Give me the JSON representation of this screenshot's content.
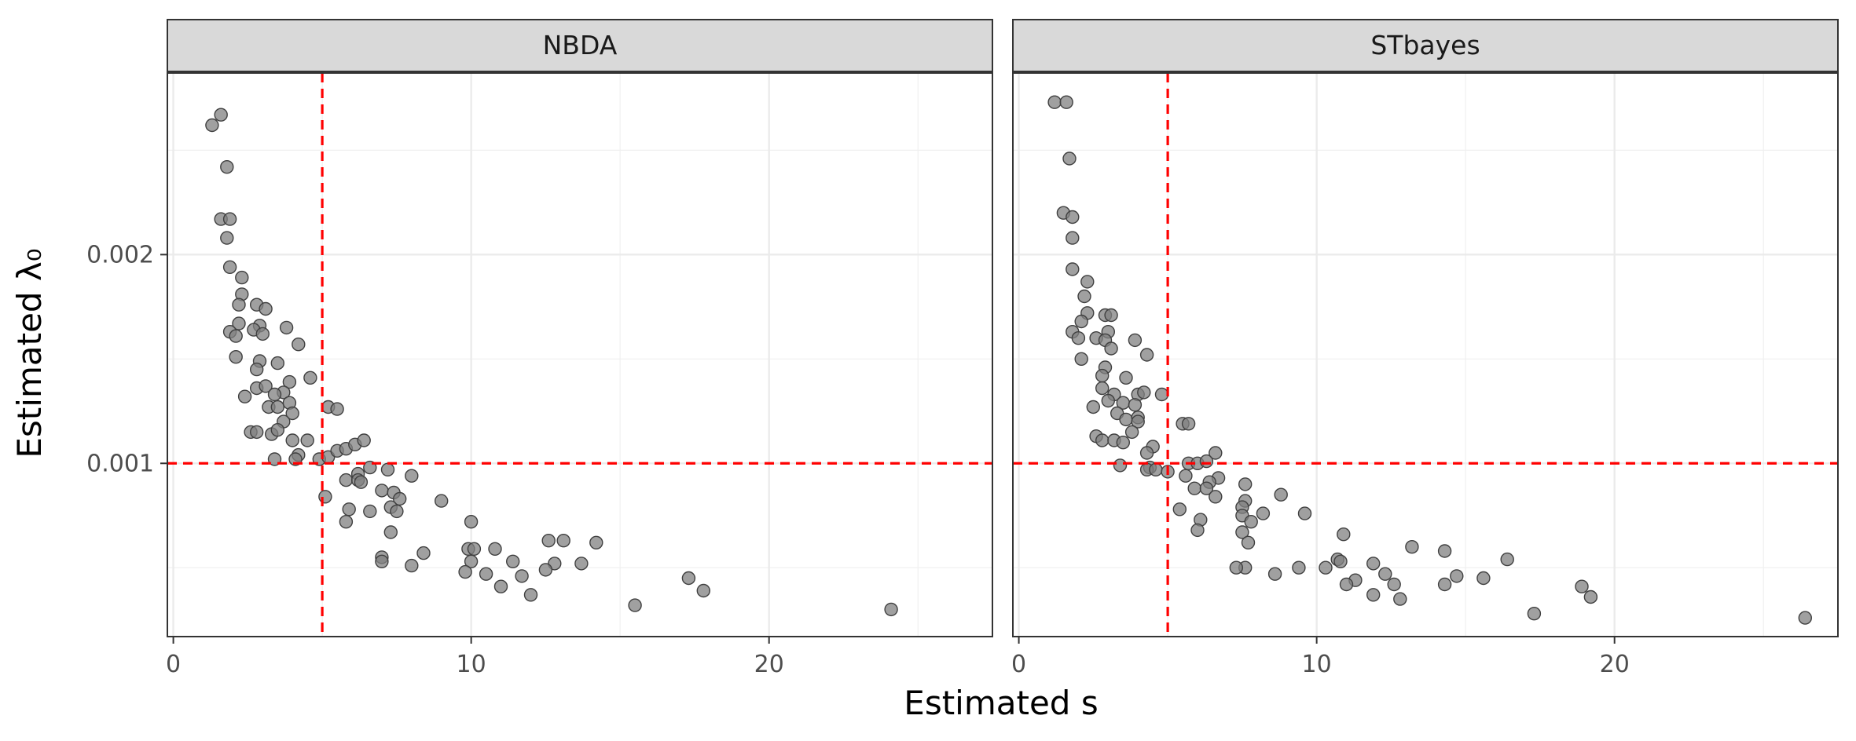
{
  "chart_data": {
    "type": "scatter",
    "xlabel": "Estimated s",
    "ylabel": "Estimated λ₀",
    "xlim": [
      -0.2,
      27.5
    ],
    "ylim": [
      0.00017,
      0.00287
    ],
    "x_ticks": [
      0,
      10,
      20
    ],
    "x_tick_labels": [
      "0",
      "10",
      "20"
    ],
    "y_ticks": [
      0.001,
      0.002
    ],
    "y_tick_labels": [
      "0.001",
      "0.002"
    ],
    "reference_lines": {
      "x": 5,
      "y": 0.001,
      "color": "#ff0000",
      "style": "dashed"
    },
    "grid": true,
    "point_color": "#808080",
    "panels": [
      {
        "name": "NBDA",
        "points": [
          [
            1.3,
            0.00262
          ],
          [
            1.6,
            0.00267
          ],
          [
            1.8,
            0.00242
          ],
          [
            1.6,
            0.00217
          ],
          [
            1.9,
            0.00217
          ],
          [
            1.8,
            0.00208
          ],
          [
            1.9,
            0.00194
          ],
          [
            2.3,
            0.00189
          ],
          [
            2.3,
            0.00181
          ],
          [
            2.2,
            0.00176
          ],
          [
            2.8,
            0.00176
          ],
          [
            3.1,
            0.00174
          ],
          [
            2.2,
            0.00167
          ],
          [
            2.9,
            0.00166
          ],
          [
            2.7,
            0.00164
          ],
          [
            3.0,
            0.00162
          ],
          [
            1.9,
            0.00163
          ],
          [
            2.1,
            0.00161
          ],
          [
            3.8,
            0.00165
          ],
          [
            4.2,
            0.00157
          ],
          [
            2.1,
            0.00151
          ],
          [
            2.9,
            0.00149
          ],
          [
            3.5,
            0.00148
          ],
          [
            2.8,
            0.00145
          ],
          [
            3.9,
            0.00139
          ],
          [
            4.6,
            0.00141
          ],
          [
            2.8,
            0.00136
          ],
          [
            3.1,
            0.00137
          ],
          [
            3.7,
            0.00134
          ],
          [
            2.4,
            0.00132
          ],
          [
            3.4,
            0.00133
          ],
          [
            3.9,
            0.00129
          ],
          [
            3.2,
            0.00127
          ],
          [
            3.5,
            0.00127
          ],
          [
            4.0,
            0.00124
          ],
          [
            3.7,
            0.0012
          ],
          [
            2.6,
            0.00115
          ],
          [
            2.8,
            0.00115
          ],
          [
            3.3,
            0.00114
          ],
          [
            3.5,
            0.00116
          ],
          [
            4.0,
            0.00111
          ],
          [
            4.5,
            0.00111
          ],
          [
            4.2,
            0.00104
          ],
          [
            4.1,
            0.00102
          ],
          [
            3.4,
            0.00102
          ],
          [
            4.9,
            0.00102
          ],
          [
            5.2,
            0.00103
          ],
          [
            5.2,
            0.00127
          ],
          [
            5.5,
            0.00126
          ],
          [
            5.5,
            0.00106
          ],
          [
            5.8,
            0.00107
          ],
          [
            6.1,
            0.00109
          ],
          [
            6.4,
            0.00111
          ],
          [
            6.6,
            0.00098
          ],
          [
            7.2,
            0.00097
          ],
          [
            6.2,
            0.00095
          ],
          [
            5.8,
            0.00092
          ],
          [
            6.2,
            0.00092
          ],
          [
            6.3,
            0.00091
          ],
          [
            5.1,
            0.00084
          ],
          [
            7.0,
            0.00087
          ],
          [
            7.4,
            0.00086
          ],
          [
            7.6,
            0.00083
          ],
          [
            8.0,
            0.00094
          ],
          [
            7.3,
            0.00079
          ],
          [
            7.5,
            0.00077
          ],
          [
            6.6,
            0.00077
          ],
          [
            5.9,
            0.00078
          ],
          [
            5.8,
            0.00072
          ],
          [
            9.0,
            0.00082
          ],
          [
            7.3,
            0.00067
          ],
          [
            7.0,
            0.00055
          ],
          [
            7.0,
            0.00053
          ],
          [
            8.0,
            0.00051
          ],
          [
            8.4,
            0.00057
          ],
          [
            10.0,
            0.00072
          ],
          [
            9.9,
            0.00059
          ],
          [
            10.1,
            0.00059
          ],
          [
            10.0,
            0.00053
          ],
          [
            9.8,
            0.00048
          ],
          [
            10.5,
            0.00047
          ],
          [
            10.8,
            0.00059
          ],
          [
            11.4,
            0.00053
          ],
          [
            12.6,
            0.00063
          ],
          [
            13.1,
            0.00063
          ],
          [
            12.8,
            0.00052
          ],
          [
            13.7,
            0.00052
          ],
          [
            14.2,
            0.00062
          ],
          [
            12.5,
            0.00049
          ],
          [
            11.0,
            0.00041
          ],
          [
            11.7,
            0.00046
          ],
          [
            12.0,
            0.00037
          ],
          [
            15.5,
            0.00032
          ],
          [
            17.3,
            0.00045
          ],
          [
            17.8,
            0.00039
          ],
          [
            24.1,
            0.0003
          ]
        ]
      },
      {
        "name": "STbayes",
        "points": [
          [
            1.2,
            0.00273
          ],
          [
            1.6,
            0.00273
          ],
          [
            1.7,
            0.00246
          ],
          [
            1.5,
            0.0022
          ],
          [
            1.8,
            0.00218
          ],
          [
            1.8,
            0.00208
          ],
          [
            1.8,
            0.00193
          ],
          [
            2.3,
            0.00187
          ],
          [
            2.2,
            0.0018
          ],
          [
            2.3,
            0.00172
          ],
          [
            2.1,
            0.00168
          ],
          [
            1.8,
            0.00163
          ],
          [
            2.0,
            0.0016
          ],
          [
            2.6,
            0.0016
          ],
          [
            2.9,
            0.00171
          ],
          [
            3.1,
            0.00171
          ],
          [
            3.0,
            0.00163
          ],
          [
            2.9,
            0.00159
          ],
          [
            3.1,
            0.00155
          ],
          [
            3.9,
            0.00159
          ],
          [
            4.3,
            0.00152
          ],
          [
            2.1,
            0.0015
          ],
          [
            2.9,
            0.00146
          ],
          [
            3.6,
            0.00141
          ],
          [
            2.8,
            0.00142
          ],
          [
            2.8,
            0.00136
          ],
          [
            3.2,
            0.00133
          ],
          [
            4.0,
            0.00133
          ],
          [
            4.2,
            0.00134
          ],
          [
            4.8,
            0.00133
          ],
          [
            3.5,
            0.00129
          ],
          [
            3.0,
            0.0013
          ],
          [
            2.5,
            0.00127
          ],
          [
            3.9,
            0.00128
          ],
          [
            3.3,
            0.00124
          ],
          [
            3.6,
            0.00121
          ],
          [
            4.0,
            0.00122
          ],
          [
            4.0,
            0.0012
          ],
          [
            3.8,
            0.00115
          ],
          [
            5.5,
            0.00119
          ],
          [
            5.7,
            0.00119
          ],
          [
            2.6,
            0.00113
          ],
          [
            2.8,
            0.00111
          ],
          [
            3.2,
            0.00111
          ],
          [
            3.5,
            0.0011
          ],
          [
            4.5,
            0.00108
          ],
          [
            4.3,
            0.00105
          ],
          [
            6.6,
            0.00105
          ],
          [
            5.7,
            0.001
          ],
          [
            6.0,
            0.001
          ],
          [
            6.3,
            0.00101
          ],
          [
            3.4,
            0.00099
          ],
          [
            4.4,
            0.00098
          ],
          [
            4.3,
            0.00097
          ],
          [
            4.6,
            0.00097
          ],
          [
            5.0,
            0.00096
          ],
          [
            5.6,
            0.00094
          ],
          [
            6.7,
            0.00093
          ],
          [
            7.6,
            0.0009
          ],
          [
            6.4,
            0.00091
          ],
          [
            5.9,
            0.00088
          ],
          [
            6.3,
            0.00088
          ],
          [
            6.6,
            0.00084
          ],
          [
            8.8,
            0.00085
          ],
          [
            7.6,
            0.00082
          ],
          [
            7.5,
            0.00079
          ],
          [
            5.4,
            0.00078
          ],
          [
            8.2,
            0.00076
          ],
          [
            9.6,
            0.00076
          ],
          [
            7.5,
            0.00075
          ],
          [
            6.1,
            0.00073
          ],
          [
            7.8,
            0.00072
          ],
          [
            6.0,
            0.00068
          ],
          [
            7.5,
            0.00067
          ],
          [
            7.7,
            0.00062
          ],
          [
            10.9,
            0.00066
          ],
          [
            13.2,
            0.0006
          ],
          [
            14.3,
            0.00058
          ],
          [
            16.4,
            0.00054
          ],
          [
            10.7,
            0.00054
          ],
          [
            10.8,
            0.00053
          ],
          [
            11.9,
            0.00052
          ],
          [
            9.4,
            0.0005
          ],
          [
            10.3,
            0.0005
          ],
          [
            7.6,
            0.0005
          ],
          [
            7.3,
            0.0005
          ],
          [
            8.6,
            0.00047
          ],
          [
            12.3,
            0.00047
          ],
          [
            14.7,
            0.00046
          ],
          [
            15.6,
            0.00045
          ],
          [
            11.3,
            0.00044
          ],
          [
            11.0,
            0.00042
          ],
          [
            12.6,
            0.00042
          ],
          [
            14.3,
            0.00042
          ],
          [
            18.9,
            0.00041
          ],
          [
            11.9,
            0.00037
          ],
          [
            12.8,
            0.00035
          ],
          [
            19.2,
            0.00036
          ],
          [
            17.3,
            0.00028
          ],
          [
            26.4,
            0.00026
          ]
        ]
      }
    ]
  }
}
